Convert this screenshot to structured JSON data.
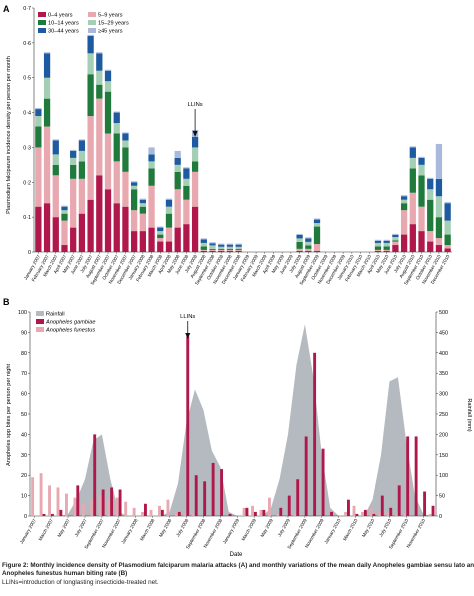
{
  "chart_data": [
    {
      "panel": "A",
      "type": "bar",
      "stacked": true,
      "ylabel": "Plasmodium falciparum incidence density per person per month",
      "ylim": [
        0,
        0.7
      ],
      "yticks": [
        "0",
        "0·1",
        "0·2",
        "0·3",
        "0·4",
        "0·5",
        "0·6",
        "0·7"
      ],
      "x_tick_labels": [
        "January 2007",
        "February 2007",
        "March 2007",
        "April 2007",
        "May 2007",
        "June 2007",
        "July 2007",
        "August 2007",
        "September 2007",
        "October 2007",
        "November 2007",
        "December 2007",
        "January 2008",
        "February 2008",
        "March 2008",
        "April 2008",
        "May 2008",
        "June 2008",
        "July 2008",
        "August 2008",
        "September 2008",
        "October 2008",
        "November 2008",
        "December 2008",
        "January 2009",
        "February 2009",
        "March 2009",
        "April 2009",
        "May 2009",
        "June 2009",
        "July 2009",
        "August 2009",
        "September 2009",
        "October 2009",
        "November 2009",
        "December 2009",
        "January 2010",
        "February 2010",
        "March 2010",
        "April 2010",
        "May 2010",
        "June 2010",
        "July 2010",
        "August 2010",
        "September 2010",
        "October 2010",
        "November 2010",
        "December 2010"
      ],
      "legend_position": "top-left",
      "annotation": {
        "label": "LLINs",
        "month_index": 18
      },
      "series": [
        {
          "name": "0–4 years",
          "color": "#b0174a",
          "values": [
            0.13,
            0.14,
            0.1,
            0.02,
            0.07,
            0.11,
            0.15,
            0.22,
            0.18,
            0.14,
            0.13,
            0.06,
            0.06,
            0.07,
            0.03,
            0.03,
            0.07,
            0.08,
            0.13,
            0.003,
            0.003,
            0.003,
            0.003,
            0.003,
            0,
            0,
            0,
            0,
            0,
            0,
            0.003,
            0.003,
            0.003,
            0,
            0,
            0,
            0,
            0,
            0,
            0.003,
            0.003,
            0.02,
            0.05,
            0.08,
            0.06,
            0.03,
            0.02,
            0.01
          ]
        },
        {
          "name": "5–9 years",
          "color": "#e8a8b0",
          "values": [
            0.17,
            0.22,
            0.12,
            0.07,
            0.14,
            0.1,
            0.24,
            0.22,
            0.16,
            0.12,
            0.1,
            0.06,
            0.05,
            0.12,
            0.01,
            0.04,
            0.11,
            0.07,
            0.1,
            0.003,
            0.003,
            0.003,
            0.003,
            0.003,
            0,
            0,
            0,
            0,
            0,
            0,
            0.006,
            0.006,
            0.02,
            0,
            0,
            0,
            0,
            0,
            0,
            0.003,
            0.003,
            0.01,
            0.07,
            0.09,
            0.07,
            0.03,
            0.02,
            0.01
          ]
        },
        {
          "name": "10–14 years",
          "color": "#1f7a3c",
          "values": [
            0.06,
            0.08,
            0.03,
            0.02,
            0.04,
            0.05,
            0.12,
            0.04,
            0.12,
            0.08,
            0.07,
            0.06,
            0.02,
            0.05,
            0.01,
            0.04,
            0.05,
            0.04,
            0.03,
            0.01,
            0.003,
            0.003,
            0.003,
            0.003,
            0,
            0,
            0,
            0,
            0,
            0,
            0.02,
            0.01,
            0.05,
            0,
            0,
            0,
            0,
            0,
            0,
            0.01,
            0.01,
            0.003,
            0.02,
            0.07,
            0.09,
            0.09,
            0.06,
            0.03
          ]
        },
        {
          "name": "15–29 years",
          "color": "#a5cfb5",
          "values": [
            0.03,
            0.06,
            0.03,
            0.01,
            0.02,
            0.03,
            0.06,
            0.04,
            0.03,
            0.03,
            0.02,
            0.01,
            0.01,
            0.02,
            0.01,
            0.02,
            0.02,
            0.02,
            0.04,
            0.01,
            0.01,
            0.006,
            0.006,
            0.006,
            0,
            0,
            0,
            0,
            0,
            0,
            0.01,
            0.01,
            0.01,
            0,
            0,
            0,
            0,
            0,
            0,
            0.01,
            0.01,
            0.01,
            0.01,
            0.03,
            0.03,
            0.03,
            0.06,
            0.04
          ]
        },
        {
          "name": "30–44 years",
          "color": "#1e5aa0",
          "values": [
            0.02,
            0.07,
            0.04,
            0.01,
            0.02,
            0.03,
            0.05,
            0.05,
            0.03,
            0.03,
            0.02,
            0.01,
            0.01,
            0.02,
            0.01,
            0.02,
            0.02,
            0.03,
            0.03,
            0.01,
            0.006,
            0.006,
            0.006,
            0.006,
            0,
            0,
            0,
            0,
            0,
            0,
            0.01,
            0.01,
            0.01,
            0,
            0,
            0,
            0,
            0,
            0,
            0.006,
            0.006,
            0.006,
            0.01,
            0.03,
            0.02,
            0.03,
            0.05,
            0.05
          ]
        },
        {
          "name": "≥45 years",
          "color": "#aab8dc",
          "values": [
            0.003,
            0.003,
            0.003,
            0.003,
            0.003,
            0.003,
            0.003,
            0.003,
            0.003,
            0.003,
            0.003,
            0.003,
            0.003,
            0.02,
            0.003,
            0.003,
            0.02,
            0.003,
            0.02,
            0.003,
            0.003,
            0.003,
            0.003,
            0.003,
            0,
            0,
            0,
            0,
            0,
            0,
            0.003,
            0.003,
            0.003,
            0,
            0,
            0,
            0,
            0,
            0,
            0.003,
            0.003,
            0.003,
            0.003,
            0.003,
            0.003,
            0.003,
            0.1,
            0.003
          ]
        }
      ]
    },
    {
      "panel": "B",
      "type": "bar",
      "xlabel": "Date",
      "ylabel": "Anopheles spp bites per person per night",
      "ylim": [
        0,
        100
      ],
      "yticks": [
        "0",
        "10",
        "20",
        "30",
        "40",
        "50",
        "60",
        "70",
        "80",
        "90",
        "100"
      ],
      "y2label": "Rainfall (mm)",
      "y2lim": [
        0,
        500
      ],
      "y2ticks": [
        "0",
        "50",
        "100",
        "150",
        "200",
        "250",
        "300",
        "350",
        "400",
        "450",
        "500"
      ],
      "x_tick_labels": [
        "January 2007",
        "March 2007",
        "May 2007",
        "July 2007",
        "September 2007",
        "November 2007",
        "January 2008",
        "March 2008",
        "May 2008",
        "July 2008",
        "September 2008",
        "November 2008",
        "January 2009",
        "March 2009",
        "May 2009",
        "July 2009",
        "September 2009",
        "November 2009",
        "January 2010",
        "March 2010",
        "May 2010",
        "July 2010",
        "September 2010",
        "November 2010"
      ],
      "legend_position": "top-left",
      "annotation": {
        "label": "LLINs",
        "month_index": 18
      },
      "series": [
        {
          "name": "Rainfall",
          "type": "area",
          "axis": "right",
          "color": "#b4babf",
          "values": [
            0,
            0,
            0,
            0,
            5,
            40,
            90,
            185,
            200,
            90,
            10,
            0,
            0,
            0,
            0,
            0,
            10,
            80,
            230,
            310,
            260,
            160,
            120,
            10,
            0,
            0,
            0,
            0,
            20,
            90,
            200,
            370,
            470,
            340,
            150,
            20,
            0,
            0,
            0,
            0,
            40,
            150,
            330,
            340,
            180,
            50,
            5,
            0
          ]
        },
        {
          "name": "Anopheles gambiae",
          "color": "#b0174a",
          "values": [
            0,
            1,
            1,
            3,
            0,
            15,
            0,
            40,
            13,
            14,
            13,
            0,
            0,
            6,
            0,
            3,
            0,
            2,
            88,
            20,
            17,
            26,
            23,
            1,
            0,
            4,
            2,
            3,
            0,
            4,
            10,
            18,
            39,
            80,
            33,
            2,
            0,
            8,
            1,
            3,
            1,
            10,
            4,
            15,
            39,
            39,
            12,
            5
          ]
        },
        {
          "name": "Anopheles funestus",
          "color": "#e8a8b0",
          "values": [
            19,
            21,
            15,
            14,
            11,
            9,
            6,
            8,
            10,
            8,
            9,
            7,
            4,
            2,
            3,
            5,
            8,
            2,
            1,
            1,
            0,
            0,
            0,
            0,
            0,
            4,
            5,
            3,
            9,
            1,
            0,
            1,
            0,
            0,
            0,
            0,
            0,
            2,
            5,
            2,
            4,
            2,
            2,
            1,
            1,
            0,
            0,
            1
          ]
        }
      ]
    }
  ],
  "caption": {
    "lead_text": "Figure 2: Monthly incidence density of Plasmodium falciparum malaria attacks (A) and monthly variations of the mean daily Anopheles gambiae sensu lato and",
    "lead_text_2": "Anopheles funestus human biting rate (B)",
    "abbrev": "LLINs=introduction of longlasting insecticide-treated net."
  }
}
